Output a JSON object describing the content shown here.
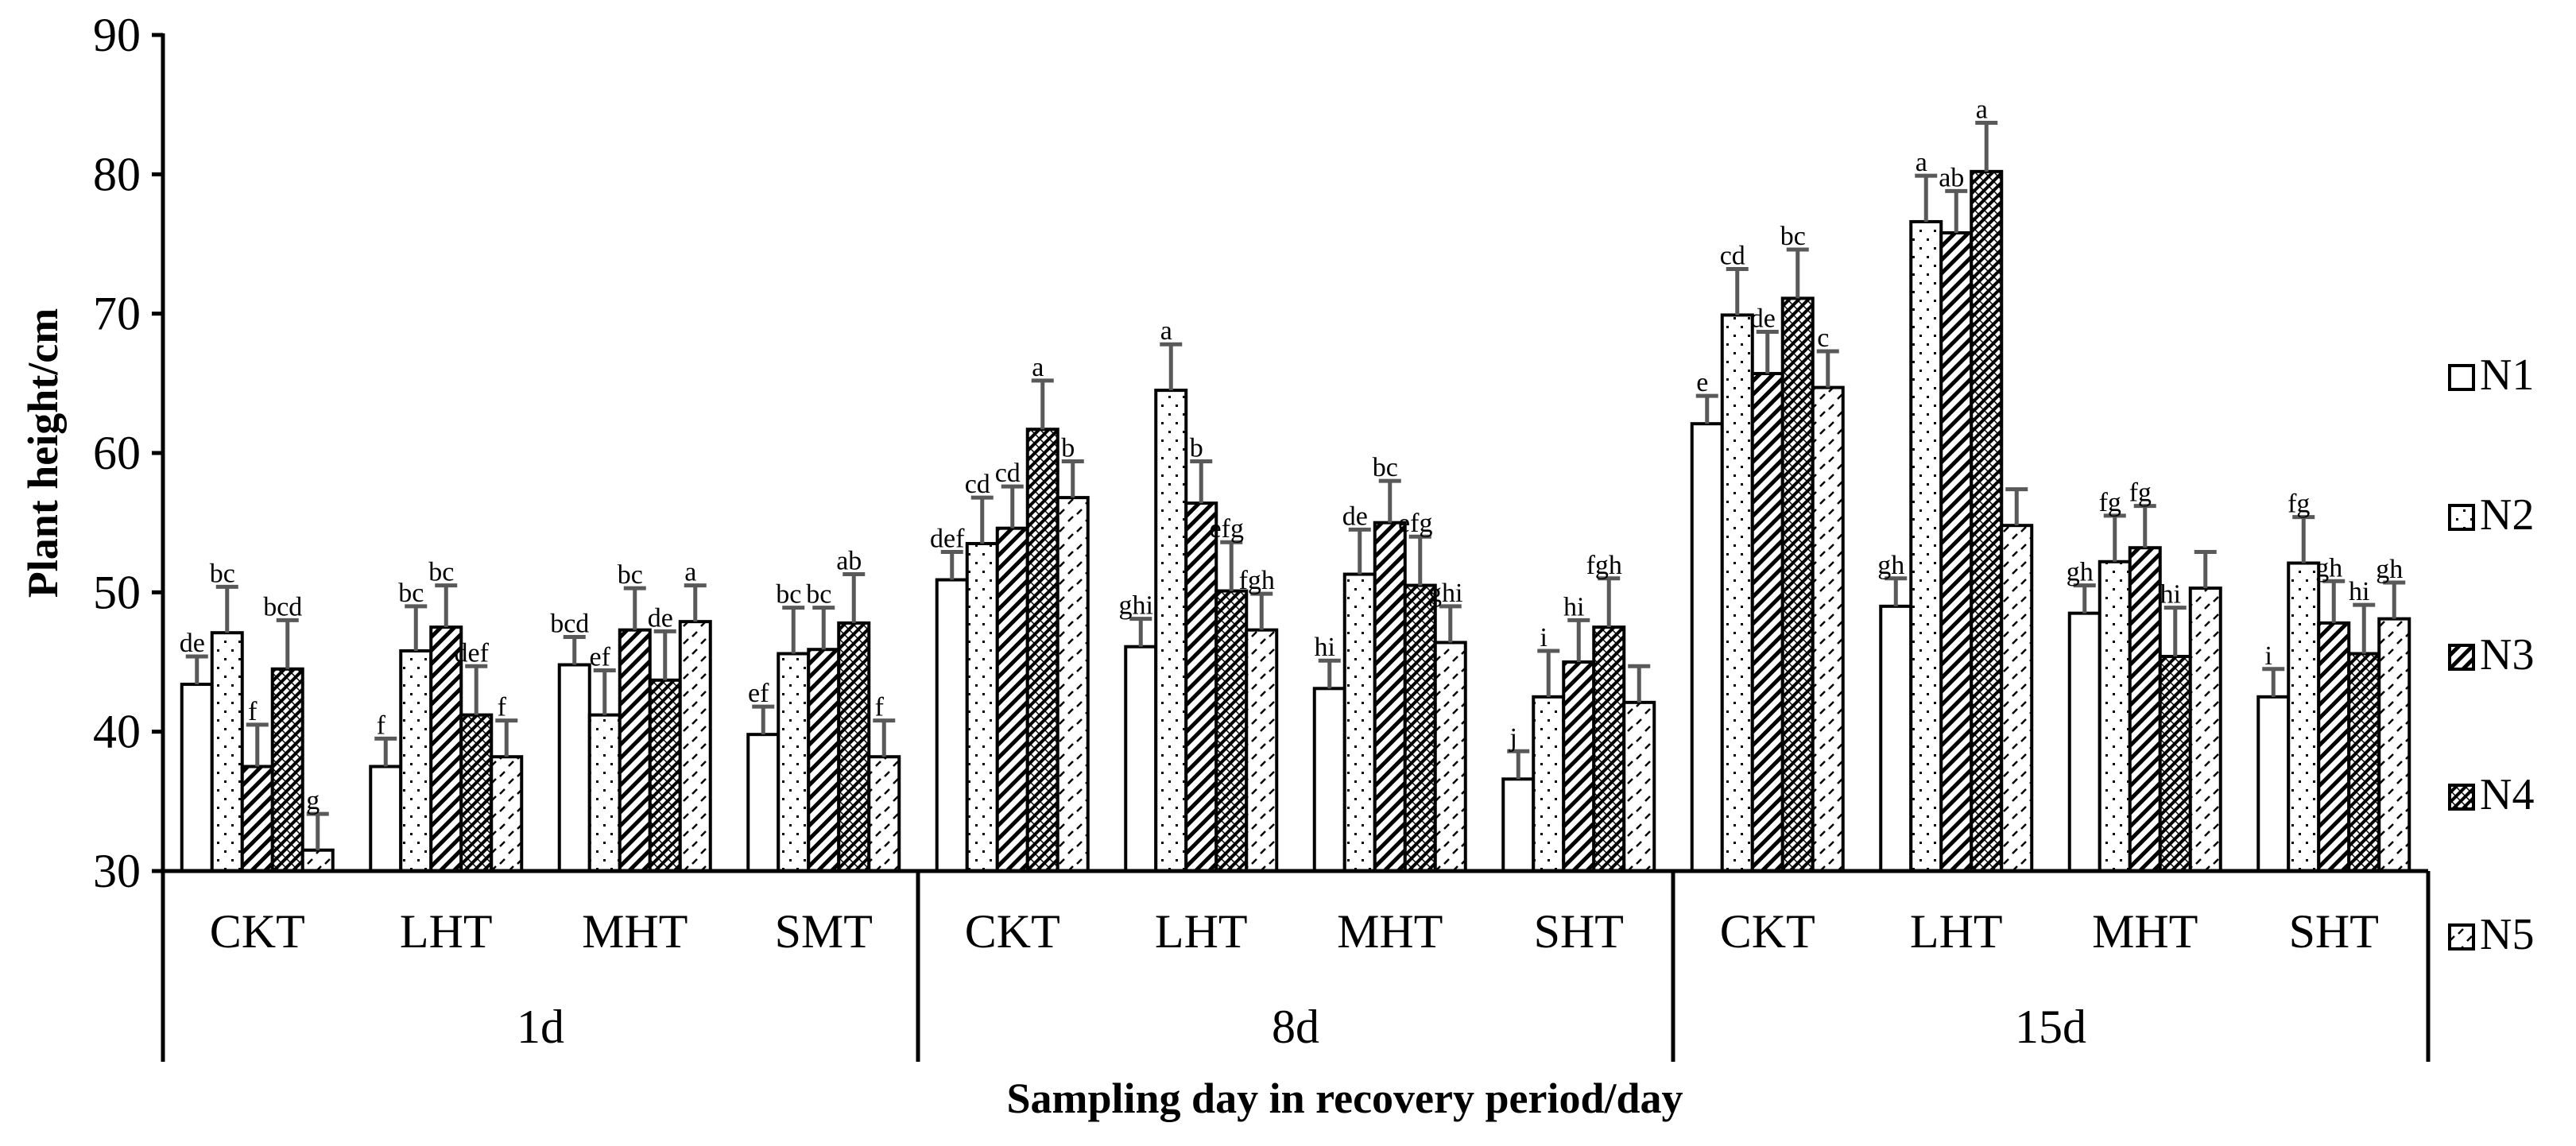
{
  "chart_data": {
    "type": "bar",
    "title": "",
    "ylabel": "Plant height/cm",
    "xlabel": "Sampling day in recovery period/day",
    "ylim": [
      30,
      90
    ],
    "yticks": [
      30,
      40,
      50,
      60,
      70,
      80,
      90
    ],
    "grid": false,
    "legend_position": "right",
    "groups": [
      {
        "day": "1d",
        "categories": [
          "CKT",
          "LHT",
          "MHT",
          "SMT"
        ]
      },
      {
        "day": "8d",
        "categories": [
          "CKT",
          "LHT",
          "MHT",
          "SHT"
        ]
      },
      {
        "day": "15d",
        "categories": [
          "CKT",
          "LHT",
          "MHT",
          "SHT"
        ]
      }
    ],
    "series": [
      {
        "name": "N1",
        "values": [
          43.4,
          37.5,
          44.8,
          39.8,
          50.9,
          46.1,
          43.1,
          36.6,
          62.1,
          49.0,
          48.5,
          42.5
        ],
        "errors": [
          2.0,
          2.0,
          2.0,
          2.0,
          2.0,
          2.0,
          2.0,
          2.0,
          2.0,
          2.0,
          2.0,
          2.0
        ],
        "labels": [
          "de",
          "f",
          "bcd",
          "ef",
          "def",
          "ghi",
          "hi",
          "j",
          "e",
          "gh",
          "gh",
          "i"
        ]
      },
      {
        "name": "N2",
        "values": [
          47.1,
          45.8,
          41.2,
          45.6,
          53.5,
          64.5,
          51.3,
          42.5,
          69.9,
          76.6,
          52.2,
          52.1
        ],
        "errors": [
          3.3,
          3.2,
          3.2,
          3.3,
          3.3,
          3.3,
          3.2,
          3.3,
          3.3,
          3.3,
          3.3,
          3.3
        ],
        "labels": [
          "bc",
          "bc",
          "ef",
          "bc",
          "cd",
          "a",
          "de",
          "i",
          "cd",
          "a",
          "fg",
          "fg"
        ]
      },
      {
        "name": "N3",
        "values": [
          37.5,
          47.5,
          47.3,
          45.9,
          54.6,
          56.4,
          55.0,
          45.0,
          65.7,
          75.8,
          53.2,
          47.8
        ],
        "errors": [
          3.0,
          3.0,
          3.0,
          3.0,
          3.0,
          3.0,
          3.0,
          3.0,
          3.0,
          3.0,
          3.0,
          3.0
        ],
        "labels": [
          "f",
          "bc",
          "bc",
          "bc",
          "cd",
          "b",
          "bc",
          "hi",
          "de",
          "ab",
          "fg",
          "gh"
        ]
      },
      {
        "name": "N4",
        "values": [
          44.5,
          41.2,
          43.7,
          47.8,
          61.7,
          50.1,
          50.5,
          47.5,
          71.1,
          80.2,
          45.4,
          45.6
        ],
        "errors": [
          3.5,
          3.5,
          3.5,
          3.5,
          3.5,
          3.5,
          3.5,
          3.5,
          3.5,
          3.5,
          3.5,
          3.5
        ],
        "labels": [
          "bcd",
          "def",
          "de",
          "ab",
          "a",
          "efg",
          "efg",
          "fgh",
          "bc",
          "a",
          "hi",
          "hi"
        ]
      },
      {
        "name": "N5",
        "values": [
          31.5,
          38.2,
          47.9,
          38.2,
          56.8,
          47.3,
          46.4,
          42.1,
          64.7,
          54.8,
          50.3,
          48.1
        ],
        "errors": [
          2.6,
          2.6,
          2.6,
          2.6,
          2.6,
          2.6,
          2.6,
          2.6,
          2.6,
          2.6,
          2.6,
          2.6
        ],
        "labels": [
          "g",
          "f",
          "a",
          "f",
          "b",
          "fgh",
          "ghi",
          "",
          "c",
          "",
          "",
          "gh"
        ]
      }
    ]
  }
}
